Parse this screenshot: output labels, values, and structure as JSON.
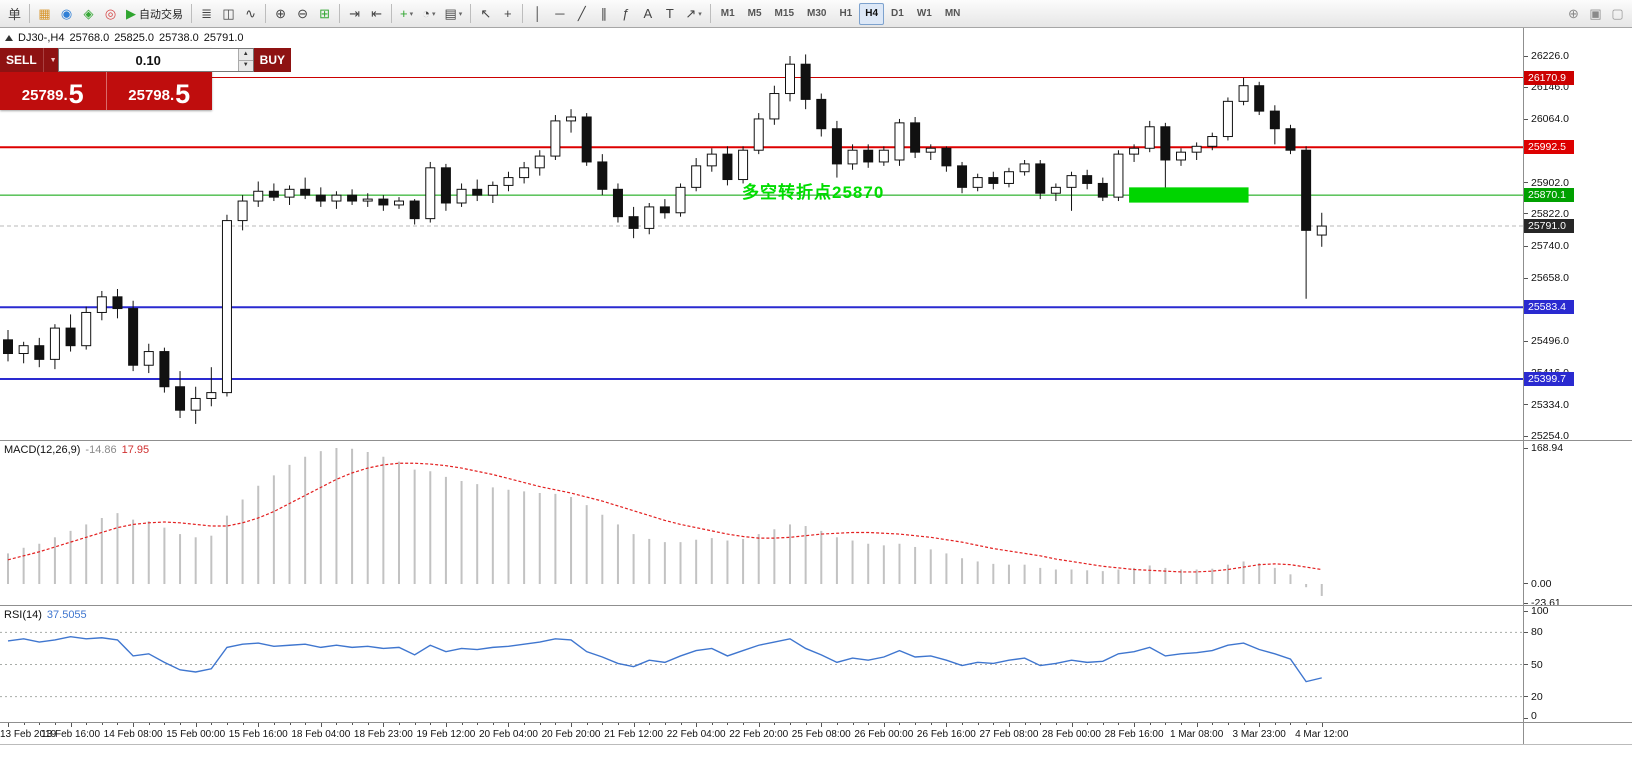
{
  "toolbar": {
    "active_timeframe": "H4",
    "items": [
      {
        "name": "new-order-button",
        "label": "单"
      },
      {
        "type": "sep"
      },
      {
        "name": "market-watch-button",
        "icon": "market-watch-icon",
        "glyph": "▦",
        "color": "#d79327"
      },
      {
        "name": "navigator-button",
        "icon": "navigator-icon",
        "glyph": "◉",
        "color": "#2f7fd6"
      },
      {
        "name": "terminal-button",
        "icon": "terminal-icon",
        "glyph": "◈",
        "color": "#37a837"
      },
      {
        "name": "signals-button",
        "icon": "signals-icon",
        "glyph": "◎",
        "color": "#d64545"
      },
      {
        "name": "autotrading-button",
        "icon": "autotrading-play-icon",
        "glyph": "▶",
        "color": "#2fa52f",
        "label": "自动交易"
      },
      {
        "type": "sep"
      },
      {
        "name": "bar-chart-button",
        "icon": "bar-chart-icon",
        "glyph": "≣"
      },
      {
        "name": "candlestick-chart-button",
        "icon": "candlestick-icon",
        "glyph": "◫"
      },
      {
        "name": "line-chart-button",
        "icon": "line-chart-icon",
        "glyph": "∿"
      },
      {
        "type": "sep"
      },
      {
        "name": "zoom-in-button",
        "icon": "zoom-in-icon",
        "glyph": "⊕"
      },
      {
        "name": "zoom-out-button",
        "icon": "zoom-out-icon",
        "glyph": "⊖"
      },
      {
        "name": "tile-windows-button",
        "icon": "tile-windows-icon",
        "glyph": "⊞",
        "color": "#37a837"
      },
      {
        "type": "sep"
      },
      {
        "name": "auto-scroll-button",
        "icon": "auto-scroll-icon",
        "glyph": "⇥"
      },
      {
        "name": "chart-shift-button",
        "icon": "chart-shift-icon",
        "glyph": "⇤"
      },
      {
        "type": "sep"
      },
      {
        "name": "indicators-button",
        "icon": "indicators-plus-icon",
        "glyph": "+",
        "color": "#2fa52f",
        "caret": true
      },
      {
        "name": "periods-button",
        "icon": "clock-icon",
        "glyph": "◔",
        "caret": true
      },
      {
        "name": "templates-button",
        "icon": "template-icon",
        "glyph": "▤",
        "caret": true
      },
      {
        "type": "sep"
      },
      {
        "name": "cursor-button",
        "icon": "cursor-arrow-icon",
        "glyph": "↖"
      },
      {
        "name": "crosshair-button",
        "icon": "crosshair-icon",
        "glyph": "+"
      },
      {
        "type": "sep"
      },
      {
        "name": "vertical-line-button",
        "icon": "vertical-line-icon",
        "glyph": "│"
      },
      {
        "name": "horizontal-line-button",
        "icon": "horizontal-line-icon",
        "glyph": "─"
      },
      {
        "name": "trendline-button",
        "icon": "trendline-icon",
        "glyph": "╱"
      },
      {
        "name": "channel-button",
        "icon": "channel-icon",
        "glyph": "∥"
      },
      {
        "name": "fibonacci-button",
        "icon": "fibonacci-icon",
        "glyph": "ƒ"
      },
      {
        "name": "text-button",
        "icon": "text-icon",
        "glyph": "A"
      },
      {
        "name": "label-button",
        "icon": "label-icon",
        "glyph": "T"
      },
      {
        "name": "arrows-button",
        "icon": "arrow-objects-icon",
        "glyph": "↗",
        "caret": true
      },
      {
        "type": "sep"
      },
      {
        "tf": true,
        "name": "timeframe-m1-button",
        "label": "M1"
      },
      {
        "tf": true,
        "name": "timeframe-m5-button",
        "label": "M5"
      },
      {
        "tf": true,
        "name": "timeframe-m15-button",
        "label": "M15"
      },
      {
        "tf": true,
        "name": "timeframe-m30-button",
        "label": "M30"
      },
      {
        "tf": true,
        "name": "timeframe-h1-button",
        "label": "H1"
      },
      {
        "tf": true,
        "name": "timeframe-h4-button",
        "label": "H4"
      },
      {
        "tf": true,
        "name": "timeframe-d1-button",
        "label": "D1"
      },
      {
        "tf": true,
        "name": "timeframe-w1-button",
        "label": "W1"
      },
      {
        "tf": true,
        "name": "timeframe-mn-button",
        "label": "MN"
      },
      {
        "type": "spacer"
      },
      {
        "name": "search-symbol-button",
        "icon": "magnifier-plus-icon",
        "glyph": "⊕",
        "color": "#8a8a8a"
      },
      {
        "name": "new-chart-button",
        "icon": "new-chart-icon",
        "glyph": "▣",
        "color": "#8a8a8a"
      },
      {
        "name": "chart-window-button",
        "icon": "window-icon",
        "glyph": "▢",
        "color": "#9a9a9a"
      }
    ]
  },
  "symbol_info": {
    "symbol": "DJ30-,H4",
    "open": "25768.0",
    "high": "25825.0",
    "low": "25738.0",
    "close": "25791.0"
  },
  "trade_panel": {
    "sell_label": "SELL",
    "buy_label": "BUY",
    "volume": "0.10",
    "sell_price": "25789.5",
    "buy_price": "25798.5"
  },
  "chart_data": {
    "type": "candlestick",
    "symbol": "DJ30-",
    "timeframe": "H4",
    "price_axis": {
      "max": 26226.0,
      "min": 25254.0,
      "ticks": [
        26226.0,
        26146.0,
        26064.0,
        25902.0,
        25822.0,
        25740.0,
        25658.0,
        25496.0,
        25416.0,
        25334.0,
        25254.0
      ]
    },
    "current_price": 25791.0,
    "current_price_tag_color": "#262626",
    "hlines": [
      {
        "price": 26170.9,
        "color": "#cc0000",
        "width": 1
      },
      {
        "price": 25992.5,
        "color": "#dd0000",
        "width": 2
      },
      {
        "price": 25870.1,
        "color": "#00a000",
        "width": 1
      },
      {
        "price": 25583.4,
        "color": "#2a2ad0",
        "width": 2
      },
      {
        "price": 25399.7,
        "color": "#2a2ad0",
        "width": 2
      }
    ],
    "annotation": {
      "text": "多空转折点25870",
      "color": "#00dd00"
    },
    "highlight_box": {
      "from_bar": 72,
      "to_bar": 79,
      "price_top": 25890,
      "price_bottom": 25851,
      "color": "#00d500"
    },
    "ohlc": [
      [
        25500,
        25525,
        25445,
        25465
      ],
      [
        25465,
        25495,
        25440,
        25485
      ],
      [
        25485,
        25505,
        25430,
        25450
      ],
      [
        25450,
        25540,
        25425,
        25530
      ],
      [
        25530,
        25565,
        25470,
        25485
      ],
      [
        25485,
        25585,
        25475,
        25570
      ],
      [
        25570,
        25625,
        25550,
        25610
      ],
      [
        25610,
        25630,
        25555,
        25580
      ],
      [
        25580,
        25600,
        25420,
        25435
      ],
      [
        25435,
        25490,
        25415,
        25470
      ],
      [
        25470,
        25480,
        25365,
        25380
      ],
      [
        25380,
        25420,
        25300,
        25320
      ],
      [
        25320,
        25380,
        25285,
        25350
      ],
      [
        25350,
        25430,
        25330,
        25365
      ],
      [
        25365,
        25820,
        25355,
        25805
      ],
      [
        25805,
        25870,
        25780,
        25855
      ],
      [
        25855,
        25905,
        25840,
        25880
      ],
      [
        25880,
        25900,
        25855,
        25865
      ],
      [
        25865,
        25895,
        25845,
        25885
      ],
      [
        25885,
        25915,
        25860,
        25870
      ],
      [
        25870,
        25890,
        25840,
        25855
      ],
      [
        25855,
        25880,
        25835,
        25870
      ],
      [
        25870,
        25885,
        25845,
        25855
      ],
      [
        25855,
        25875,
        25840,
        25860
      ],
      [
        25860,
        25870,
        25830,
        25845
      ],
      [
        25845,
        25865,
        25835,
        25855
      ],
      [
        25855,
        25860,
        25795,
        25810
      ],
      [
        25810,
        25955,
        25800,
        25940
      ],
      [
        25940,
        25950,
        25830,
        25850
      ],
      [
        25850,
        25900,
        25840,
        25885
      ],
      [
        25885,
        25910,
        25855,
        25870
      ],
      [
        25870,
        25905,
        25850,
        25895
      ],
      [
        25895,
        25930,
        25880,
        25915
      ],
      [
        25915,
        25955,
        25900,
        25940
      ],
      [
        25940,
        25985,
        25920,
        25970
      ],
      [
        25970,
        26075,
        25960,
        26060
      ],
      [
        26060,
        26090,
        26030,
        26070
      ],
      [
        26070,
        26080,
        25945,
        25955
      ],
      [
        25955,
        25975,
        25870,
        25885
      ],
      [
        25885,
        25900,
        25800,
        25815
      ],
      [
        25815,
        25840,
        25760,
        25785
      ],
      [
        25785,
        25850,
        25770,
        25840
      ],
      [
        25840,
        25860,
        25810,
        25825
      ],
      [
        25825,
        25900,
        25815,
        25890
      ],
      [
        25890,
        25965,
        25880,
        25945
      ],
      [
        25945,
        25990,
        25930,
        25975
      ],
      [
        25975,
        25995,
        25895,
        25910
      ],
      [
        25910,
        25995,
        25900,
        25985
      ],
      [
        25985,
        26080,
        25975,
        26065
      ],
      [
        26065,
        26150,
        26050,
        26130
      ],
      [
        26130,
        26226,
        26110,
        26205
      ],
      [
        26205,
        26230,
        26090,
        26115
      ],
      [
        26115,
        26130,
        26020,
        26040
      ],
      [
        26040,
        26060,
        25915,
        25950
      ],
      [
        25950,
        26000,
        25935,
        25985
      ],
      [
        25985,
        26000,
        25940,
        25955
      ],
      [
        25955,
        25995,
        25945,
        25985
      ],
      [
        25960,
        26065,
        25945,
        26055
      ],
      [
        26055,
        26070,
        25965,
        25980
      ],
      [
        25980,
        26000,
        25960,
        25990
      ],
      [
        25990,
        25995,
        25930,
        25945
      ],
      [
        25945,
        25955,
        25875,
        25890
      ],
      [
        25890,
        25925,
        25880,
        25915
      ],
      [
        25915,
        25930,
        25885,
        25900
      ],
      [
        25900,
        25940,
        25890,
        25930
      ],
      [
        25930,
        25960,
        25920,
        25950
      ],
      [
        25950,
        25960,
        25860,
        25875
      ],
      [
        25875,
        25900,
        25855,
        25890
      ],
      [
        25890,
        25930,
        25830,
        25920
      ],
      [
        25920,
        25935,
        25885,
        25900
      ],
      [
        25900,
        25915,
        25855,
        25865
      ],
      [
        25865,
        25985,
        25855,
        25975
      ],
      [
        25975,
        26000,
        25955,
        25990
      ],
      [
        25990,
        26060,
        25980,
        26045
      ],
      [
        26045,
        26055,
        25880,
        25960
      ],
      [
        25960,
        25990,
        25945,
        25980
      ],
      [
        25980,
        26005,
        25960,
        25995
      ],
      [
        25995,
        26030,
        25985,
        26020
      ],
      [
        26020,
        26120,
        26010,
        26110
      ],
      [
        26110,
        26170,
        26100,
        26150
      ],
      [
        26150,
        26160,
        26075,
        26085
      ],
      [
        26085,
        26100,
        26000,
        26040
      ],
      [
        26040,
        26050,
        25975,
        25985
      ],
      [
        25985,
        25995,
        25605,
        25780
      ],
      [
        25768,
        25825,
        25738,
        25791
      ]
    ],
    "time_labels": [
      "13 Feb 2019",
      "13 Feb 16:00",
      "14 Feb 08:00",
      "15 Feb 00:00",
      "15 Feb 16:00",
      "18 Feb 04:00",
      "18 Feb 23:00",
      "19 Feb 12:00",
      "20 Feb 04:00",
      "20 Feb 20:00",
      "21 Feb 12:00",
      "22 Feb 04:00",
      "22 Feb 20:00",
      "25 Feb 08:00",
      "26 Feb 00:00",
      "26 Feb 16:00",
      "27 Feb 08:00",
      "28 Feb 00:00",
      "28 Feb 16:00",
      "1 Mar 08:00",
      "3 Mar 23:00",
      "4 Mar 12:00"
    ],
    "macd": {
      "label": "MACD(12,26,9)",
      "value_main": "-14.86",
      "value_signal": "17.95",
      "axis_max": 168.94,
      "axis_min": -23.61,
      "axis_labels": [
        {
          "text": "168.94",
          "value": 168.94
        },
        {
          "text": "0.00",
          "value": 0
        },
        {
          "text": "-23.61",
          "value": -23.61
        }
      ],
      "histogram": [
        38,
        45,
        50,
        58,
        66,
        74,
        82,
        88,
        80,
        78,
        70,
        62,
        58,
        60,
        85,
        105,
        122,
        135,
        148,
        158,
        165,
        169,
        168,
        164,
        158,
        152,
        142,
        140,
        133,
        128,
        124,
        120,
        117,
        115,
        113,
        112,
        108,
        98,
        86,
        74,
        62,
        56,
        52,
        52,
        55,
        57,
        54,
        56,
        62,
        68,
        74,
        72,
        66,
        58,
        54,
        50,
        48,
        50,
        46,
        43,
        38,
        32,
        28,
        25,
        24,
        24,
        20,
        18,
        18,
        17,
        16,
        18,
        20,
        23,
        20,
        18,
        18,
        19,
        24,
        28,
        26,
        20,
        12,
        -4,
        -14.86
      ],
      "signal": [
        30,
        35,
        40,
        46,
        52,
        58,
        64,
        70,
        74,
        76,
        77,
        76,
        74,
        72,
        72,
        76,
        82,
        90,
        100,
        110,
        120,
        130,
        138,
        144,
        148,
        150,
        150,
        149,
        147,
        144,
        140,
        136,
        131,
        126,
        121,
        117,
        113,
        108,
        103,
        97,
        91,
        85,
        79,
        74,
        70,
        66,
        62,
        59,
        57,
        57,
        58,
        60,
        62,
        63,
        64,
        64,
        63,
        62,
        60,
        58,
        55,
        52,
        48,
        44,
        41,
        38,
        35,
        31,
        28,
        25,
        22,
        20,
        18,
        17,
        16,
        15,
        15,
        16,
        18,
        21,
        24,
        25,
        24,
        21,
        17.95
      ]
    },
    "rsi": {
      "label": "RSI(14)",
      "value": "37.5055",
      "levels": [
        80,
        50,
        20
      ],
      "axis_labels": [
        {
          "text": "100",
          "value": 100
        },
        {
          "text": "80",
          "value": 80
        },
        {
          "text": "50",
          "value": 50
        },
        {
          "text": "20",
          "value": 20
        },
        {
          "text": "0",
          "value": 0
        }
      ],
      "values": [
        72,
        74,
        71,
        73,
        76,
        74,
        75,
        73,
        58,
        60,
        52,
        45,
        43,
        46,
        66,
        69,
        70,
        67,
        68,
        69,
        66,
        68,
        66,
        67,
        65,
        66,
        59,
        68,
        62,
        65,
        64,
        66,
        67,
        69,
        71,
        74,
        73,
        62,
        57,
        51,
        48,
        54,
        52,
        58,
        63,
        65,
        58,
        63,
        68,
        71,
        74,
        65,
        59,
        52,
        56,
        54,
        57,
        63,
        57,
        58,
        54,
        49,
        52,
        51,
        54,
        56,
        49,
        51,
        54,
        52,
        53,
        60,
        62,
        66,
        58,
        60,
        61,
        63,
        68,
        70,
        64,
        60,
        55,
        34,
        37.5
      ]
    }
  }
}
